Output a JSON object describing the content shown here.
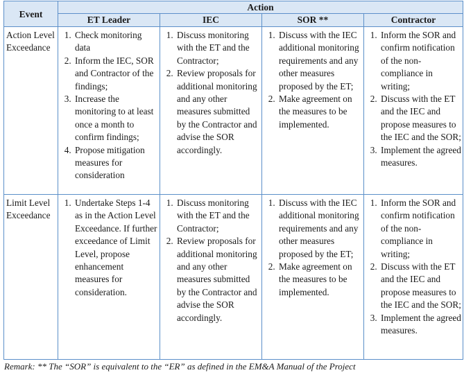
{
  "header": {
    "event": "Event",
    "action": "Action",
    "roles": [
      "ET Leader",
      "IEC",
      "SOR **",
      "Contractor"
    ]
  },
  "rows": [
    {
      "event": "Action Level Exceedance",
      "et_leader": [
        "Check monitoring data",
        "Inform the IEC, SOR and Contractor of the findings;",
        "Increase the monitoring to at least once a month to confirm findings;",
        "Propose mitigation measures for consideration"
      ],
      "iec": [
        "Discuss monitoring with the ET and the Contractor;",
        "Review proposals for additional monitoring and any other measures submitted by the Contractor and advise the SOR accordingly."
      ],
      "sor": [
        "Discuss with the IEC additional monitoring requirements and any other measures proposed by the ET;",
        "Make agreement on the measures to be implemented."
      ],
      "contractor": [
        "Inform the SOR and confirm notification of the non-compliance in writing;",
        "Discuss with the ET and the IEC and propose measures to the IEC and the SOR;",
        "Implement the agreed measures."
      ]
    },
    {
      "event": "Limit Level Exceedance",
      "et_leader": [
        "Undertake Steps 1-4 as in the Action Level Exceedance. If further exceedance of Limit Level, propose enhancement measures for consideration."
      ],
      "iec": [
        "Discuss monitoring with the ET and the Contractor;",
        "Review proposals for additional monitoring and any other measures submitted by the Contractor and advise the SOR accordingly."
      ],
      "sor": [
        "Discuss with the IEC additional monitoring requirements and any other measures proposed by the ET;",
        "Make agreement on the measures to be implemented."
      ],
      "contractor": [
        "Inform the SOR and confirm notification of the non-compliance in writing;",
        "Discuss with the ET and the IEC and propose measures to the IEC and the SOR;",
        "Implement the agreed measures."
      ]
    }
  ],
  "remark": "Remark: ** The “SOR” is equivalent to the “ER” as defined in the EM&A Manual of the Project"
}
